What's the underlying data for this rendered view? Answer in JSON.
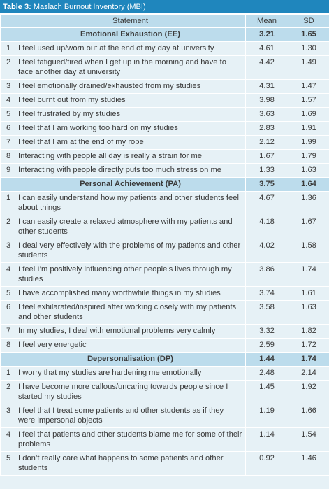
{
  "table": {
    "caption_label": "Table 3:",
    "caption_text": "Maslach Burnout Inventory (MBI)",
    "headers": {
      "num": "",
      "statement": "Statement",
      "mean": "Mean",
      "sd": "SD"
    },
    "sections": [
      {
        "title": "Emotional Exhaustion (EE)",
        "mean": "3.21",
        "sd": "1.65",
        "items": [
          {
            "num": "1",
            "statement": "I feel used up/worn out at the end of my day at university",
            "mean": "4.61",
            "sd": "1.30",
            "lines": 1
          },
          {
            "num": "2",
            "statement": "I feel fatigued/tired when I get up in the morning and have to face another day at university",
            "mean": "4.42",
            "sd": "1.49",
            "lines": 2
          },
          {
            "num": "3",
            "statement": "I feel emotionally drained/exhausted from my studies",
            "mean": "4.31",
            "sd": "1.47",
            "lines": 1
          },
          {
            "num": "4",
            "statement": "I feel burnt out from my studies",
            "mean": "3.98",
            "sd": "1.57",
            "lines": 1
          },
          {
            "num": "5",
            "statement": "I feel frustrated by my studies",
            "mean": "3.63",
            "sd": "1.69",
            "lines": 1
          },
          {
            "num": "6",
            "statement": "I feel that I am working too hard on my studies",
            "mean": "2.83",
            "sd": "1.91",
            "lines": 1
          },
          {
            "num": "7",
            "statement": "I feel that I am at the end of my rope",
            "mean": "2.12",
            "sd": "1.99",
            "lines": 1
          },
          {
            "num": "8",
            "statement": "Interacting with people all day is really a strain for me",
            "mean": "1.67",
            "sd": "1.79",
            "lines": 1
          },
          {
            "num": "9",
            "statement": "Interacting with people directly puts too much stress on me",
            "mean": "1.33",
            "sd": "1.63",
            "lines": 1
          }
        ]
      },
      {
        "title": "Personal Achievement (PA)",
        "mean": "3.75",
        "sd": "1.64",
        "items": [
          {
            "num": "1",
            "statement": "I can easily understand how my patients and other students feel about things",
            "mean": "4.67",
            "sd": "1.36",
            "lines": 2
          },
          {
            "num": "2",
            "statement": "I can easily create a relaxed atmosphere with my patients and other students",
            "mean": "4.18",
            "sd": "1.67",
            "lines": 2
          },
          {
            "num": "3",
            "statement": "I deal very effectively with the problems of my patients and other students",
            "mean": "4.02",
            "sd": "1.58",
            "lines": 2
          },
          {
            "num": "4",
            "statement": "I feel I’m positively influencing other people’s lives through my studies",
            "mean": "3.86",
            "sd": "1.74",
            "lines": 2
          },
          {
            "num": "5",
            "statement": "I have accomplished many worthwhile things in my studies",
            "mean": "3.74",
            "sd": "1.61",
            "lines": 1
          },
          {
            "num": "6",
            "statement": "I feel exhilarated/inspired after working closely with my patients and other students",
            "mean": "3.58",
            "sd": "1.63",
            "lines": 2
          },
          {
            "num": "7",
            "statement": "In my studies, I deal with emotional problems very calmly",
            "mean": "3.32",
            "sd": "1.82",
            "lines": 1
          },
          {
            "num": "8",
            "statement": "I feel very energetic",
            "mean": "2.59",
            "sd": "1.72",
            "lines": 1
          }
        ]
      },
      {
        "title": "Depersonalisation (DP)",
        "mean": "1.44",
        "sd": "1.74",
        "items": [
          {
            "num": "1",
            "statement": "I worry that my studies are hardening me emotionally",
            "mean": "2.48",
            "sd": "2.14",
            "lines": 1
          },
          {
            "num": "2",
            "statement": "I have become more callous/uncaring towards people since I started my studies",
            "mean": "1.45",
            "sd": "1.92",
            "lines": 2
          },
          {
            "num": "3",
            "statement": "I feel that I treat some patients and other students as if they were impersonal objects",
            "mean": "1.19",
            "sd": "1.66",
            "lines": 2
          },
          {
            "num": "4",
            "statement": "I feel that patients and other students blame me for some of their problems",
            "mean": "1.14",
            "sd": "1.54",
            "lines": 2
          },
          {
            "num": "5",
            "statement": "I don’t really care what happens to some patients and other students",
            "mean": "0.92",
            "sd": "1.46",
            "lines": 2
          }
        ]
      }
    ]
  }
}
